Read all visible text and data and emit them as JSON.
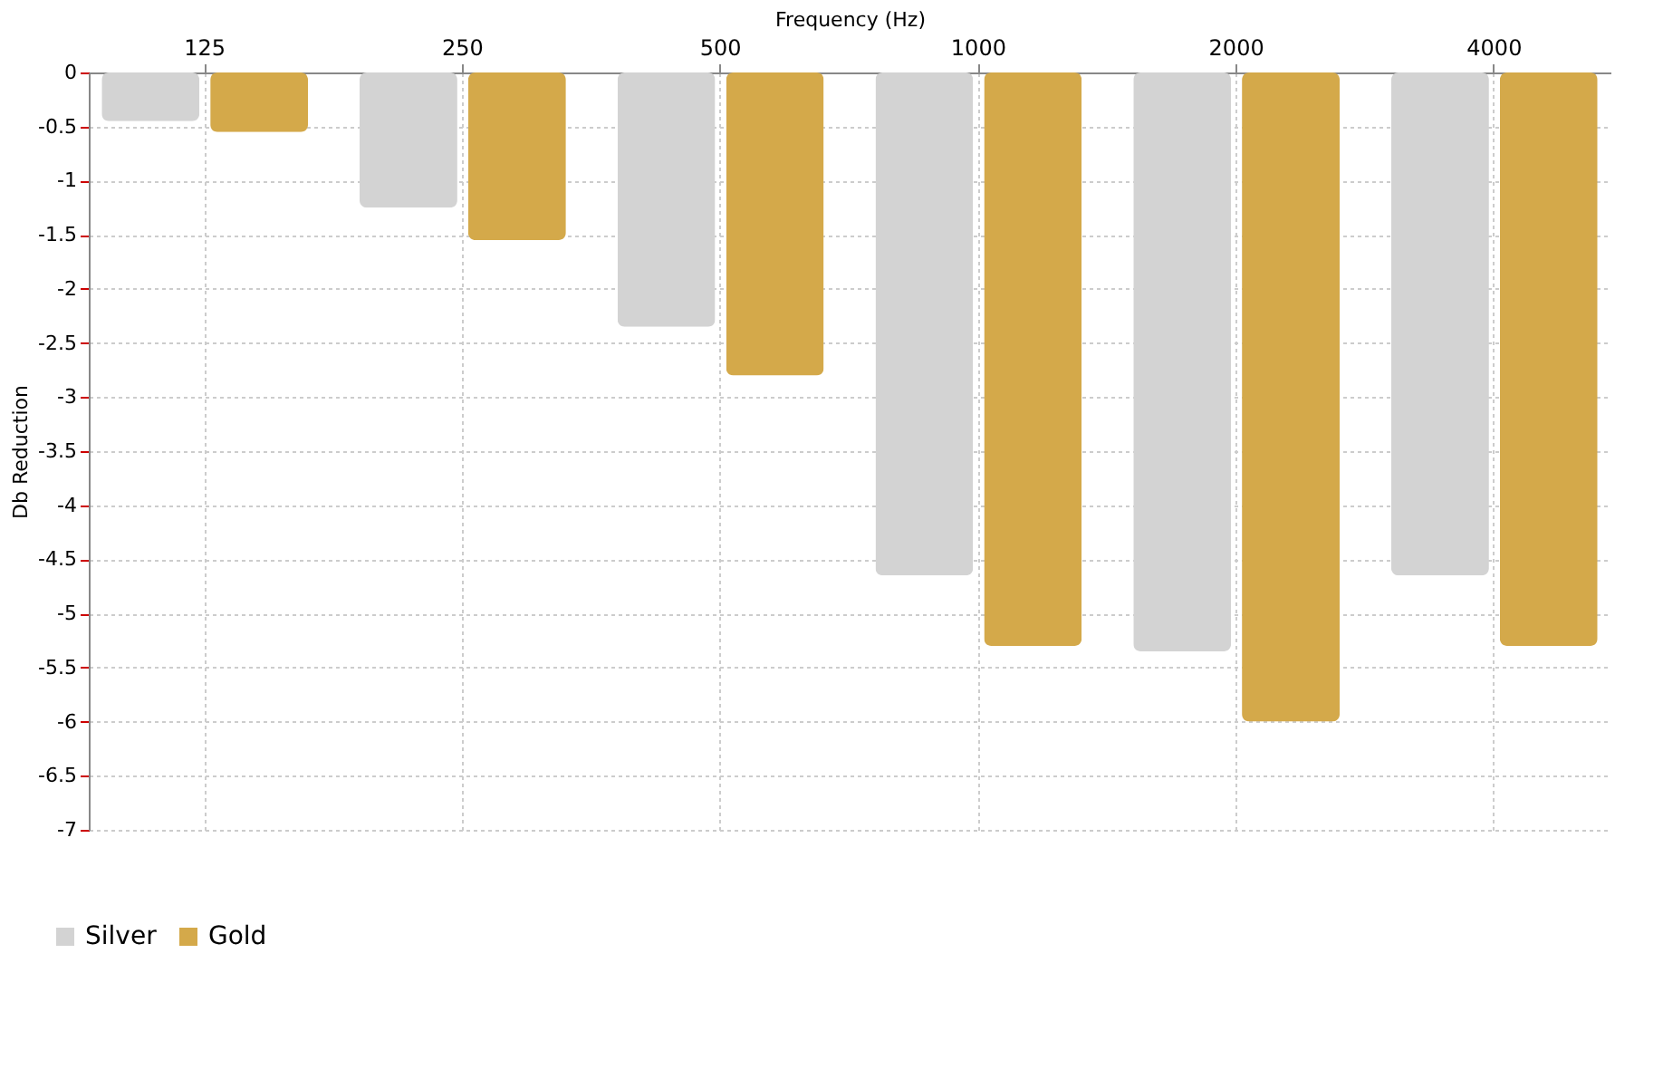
{
  "chart_data": {
    "type": "bar",
    "xlabel": "Frequency (Hz)",
    "ylabel": "Db Reduction",
    "categories": [
      "125",
      "250",
      "500",
      "1000",
      "2000",
      "4000"
    ],
    "series": [
      {
        "name": "Silver",
        "color": "#d3d3d3",
        "values": [
          -0.45,
          -1.25,
          -2.35,
          -4.65,
          -5.35,
          -4.65
        ]
      },
      {
        "name": "Gold",
        "color": "#d4a94a",
        "values": [
          -0.55,
          -1.55,
          -2.8,
          -5.3,
          -6.0,
          -5.3
        ]
      }
    ],
    "ylim": [
      -7,
      0
    ],
    "yticks": [
      0,
      -0.5,
      -1,
      -1.5,
      -2,
      -2.5,
      -3,
      -3.5,
      -4,
      -4.5,
      -5,
      -5.5,
      -6,
      -6.5,
      -7
    ],
    "grid": true,
    "legend": "bottom left"
  }
}
